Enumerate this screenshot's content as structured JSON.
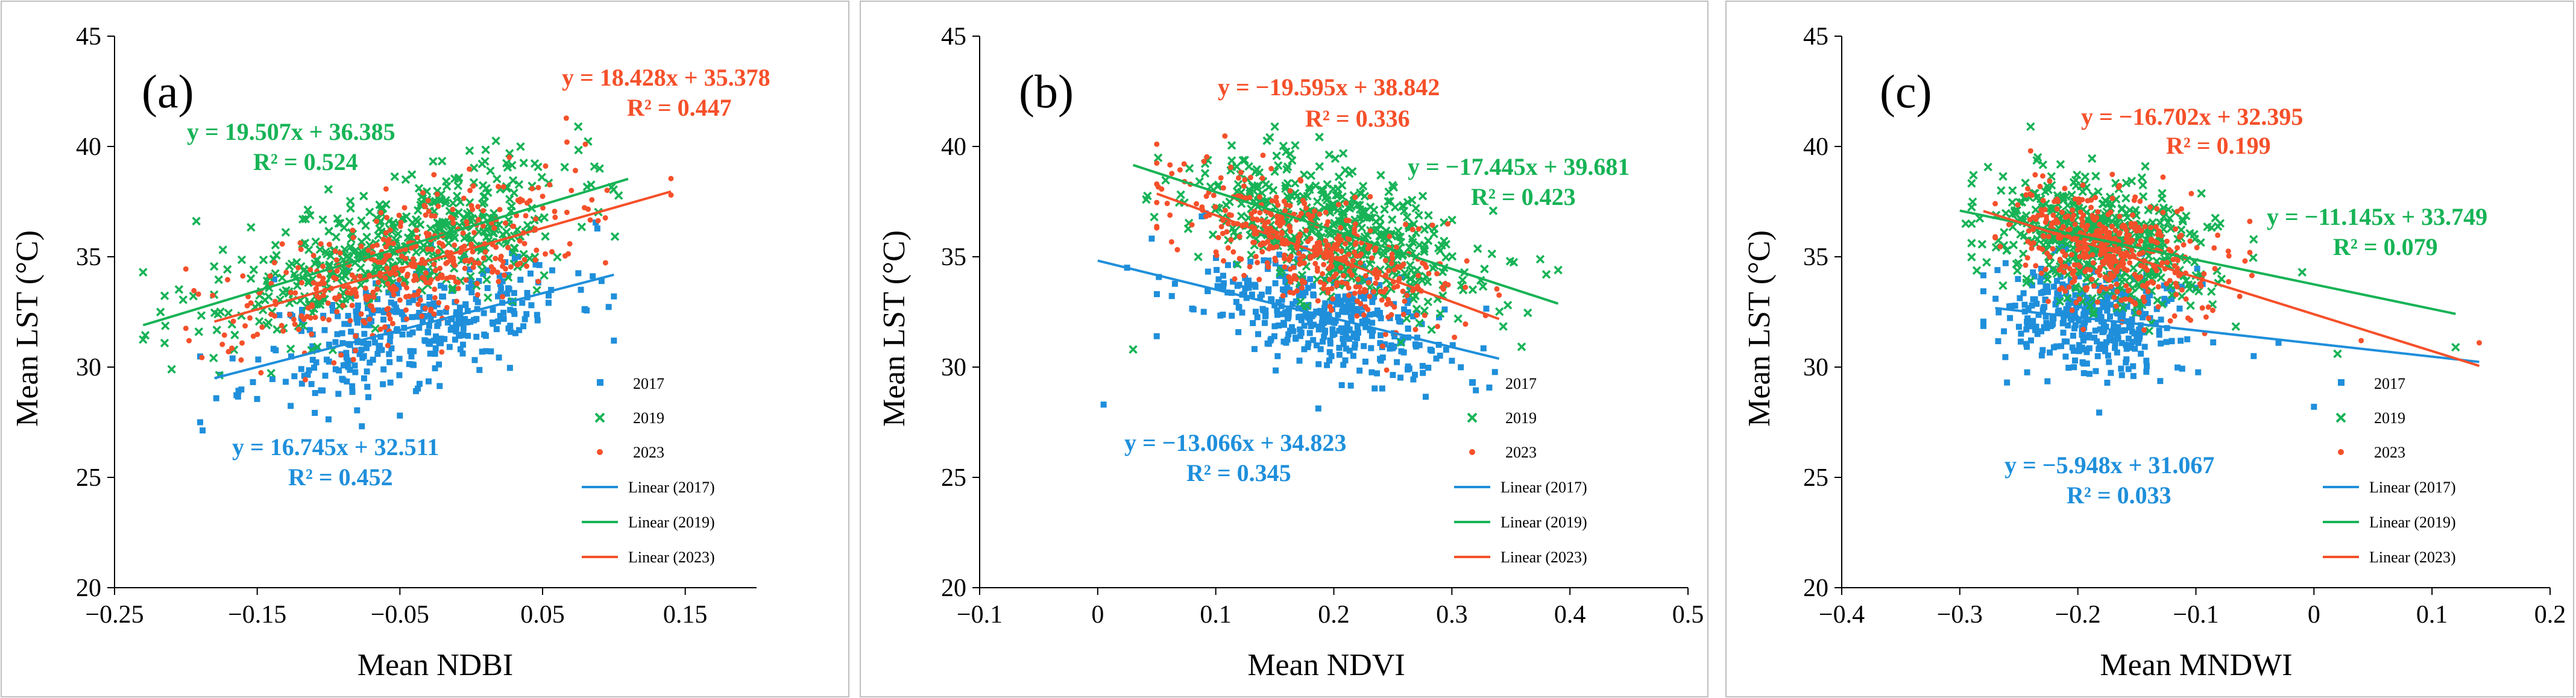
{
  "colors": {
    "s2017": "#1f8fdb",
    "s2019": "#17b356",
    "s2023": "#f5502a",
    "axis": "#000000",
    "frame": "#bfbfbf"
  },
  "chart_data": [
    {
      "type": "scatter",
      "panel_label": "(a)",
      "xlabel": "Mean NDBI",
      "ylabel": "Mean LST (°C)",
      "xlim": [
        -0.25,
        0.2
      ],
      "ylim": [
        20,
        45
      ],
      "xticks": [
        -0.25,
        -0.15,
        -0.05,
        0.05,
        0.15
      ],
      "xtick_labels": [
        "−0.25",
        "−0.15",
        "−0.05",
        "0.05",
        "0.15"
      ],
      "yticks": [
        20,
        25,
        30,
        35,
        40,
        45
      ],
      "ytick_labels": [
        "20",
        "25",
        "30",
        "35",
        "40",
        "45"
      ],
      "legend": {
        "entries": [
          "2017",
          "2019",
          "2023",
          "Linear (2017)",
          "Linear (2019)",
          "Linear (2023)"
        ],
        "position": "bottom-right"
      },
      "series": [
        {
          "name": "2017",
          "marker": "square",
          "x_mean": -0.04,
          "x_sd": 0.055,
          "x_range": [
            -0.19,
            0.1
          ],
          "slope": 16.745,
          "intercept": 32.511,
          "noise": 1.3,
          "n": 380,
          "seed": 11,
          "outliers": [
            [
              -0.19,
              27.5
            ],
            [
              -0.05,
              27.8
            ],
            [
              0.1,
              31.2
            ]
          ]
        },
        {
          "name": "2019",
          "marker": "x",
          "x_mean": -0.05,
          "x_sd": 0.06,
          "x_range": [
            -0.23,
            0.12
          ],
          "slope": 19.507,
          "intercept": 36.385,
          "noise": 1.4,
          "n": 520,
          "seed": 22,
          "outliers": [
            [
              -0.23,
              34.3
            ],
            [
              -0.21,
              29.9
            ],
            [
              0.075,
              40.9
            ],
            [
              0.09,
              39.0
            ]
          ]
        },
        {
          "name": "2023",
          "marker": "dot",
          "x_mean": -0.045,
          "x_sd": 0.06,
          "x_range": [
            -0.2,
            0.14
          ],
          "slope": 18.428,
          "intercept": 35.378,
          "noise": 1.4,
          "n": 420,
          "seed": 33,
          "outliers": [
            [
              0.08,
              40.1
            ],
            [
              0.14,
              37.8
            ]
          ]
        }
      ],
      "fits": [
        {
          "name": "Linear (2017)",
          "x_range": [
            -0.18,
            0.1
          ]
        },
        {
          "name": "Linear (2019)",
          "x_range": [
            -0.23,
            0.11
          ]
        },
        {
          "name": "Linear (2023)",
          "x_range": [
            -0.18,
            0.14
          ]
        }
      ],
      "annotations": [
        {
          "series": "2023",
          "equation": "y = 18.428x + 35.378",
          "r2": "R² = 0.447"
        },
        {
          "series": "2019",
          "equation": "y = 19.507x + 36.385",
          "r2": "R² = 0.524"
        },
        {
          "series": "2017",
          "equation": "y = 16.745x + 32.511",
          "r2": "R² = 0.452"
        }
      ]
    },
    {
      "type": "scatter",
      "panel_label": "(b)",
      "xlabel": "Mean NDVI",
      "ylabel": "Mean LST (°C)",
      "xlim": [
        -0.1,
        0.5
      ],
      "ylim": [
        20,
        45
      ],
      "xticks": [
        -0.1,
        0,
        0.1,
        0.2,
        0.3,
        0.4,
        0.5
      ],
      "xtick_labels": [
        "−0.1",
        "0",
        "0.1",
        "0.2",
        "0.3",
        "0.4",
        "0.5"
      ],
      "yticks": [
        20,
        25,
        30,
        35,
        40,
        45
      ],
      "ytick_labels": [
        "20",
        "25",
        "30",
        "35",
        "40",
        "45"
      ],
      "legend": {
        "entries": [
          "2017",
          "2019",
          "2023",
          "Linear (2017)",
          "Linear (2019)",
          "Linear (2023)"
        ],
        "position": "bottom-right"
      },
      "series": [
        {
          "name": "2017",
          "marker": "square",
          "x_mean": 0.19,
          "x_sd": 0.055,
          "x_range": [
            0.0,
            0.34
          ],
          "slope": -13.066,
          "intercept": 34.823,
          "noise": 1.3,
          "n": 380,
          "seed": 44,
          "outliers": [
            [
              0.005,
              28.3
            ],
            [
              0.05,
              31.4
            ]
          ]
        },
        {
          "name": "2019",
          "marker": "x",
          "x_mean": 0.2,
          "x_sd": 0.06,
          "x_range": [
            0.03,
            0.39
          ],
          "slope": -17.445,
          "intercept": 39.681,
          "noise": 1.4,
          "n": 520,
          "seed": 55,
          "outliers": [
            [
              0.03,
              30.8
            ],
            [
              0.15,
              40.9
            ],
            [
              0.38,
              34.2
            ],
            [
              0.39,
              34.4
            ]
          ]
        },
        {
          "name": "2023",
          "marker": "dot",
          "x_mean": 0.18,
          "x_sd": 0.055,
          "x_range": [
            0.05,
            0.34
          ],
          "slope": -19.595,
          "intercept": 38.842,
          "noise": 1.3,
          "n": 420,
          "seed": 66,
          "outliers": [
            [
              0.14,
              39.6
            ]
          ]
        }
      ],
      "fits": [
        {
          "name": "Linear (2017)",
          "x_range": [
            0.0,
            0.34
          ]
        },
        {
          "name": "Linear (2019)",
          "x_range": [
            0.03,
            0.39
          ]
        },
        {
          "name": "Linear (2023)",
          "x_range": [
            0.05,
            0.34
          ]
        }
      ],
      "annotations": [
        {
          "series": "2023",
          "equation": "y = −19.595x + 38.842",
          "r2": "R² = 0.336"
        },
        {
          "series": "2019",
          "equation": "y = −17.445x + 39.681",
          "r2": "R² = 0.423"
        },
        {
          "series": "2017",
          "equation": "y = −13.066x + 34.823",
          "r2": "R² = 0.345"
        }
      ]
    },
    {
      "type": "scatter",
      "panel_label": "(c)",
      "xlabel": "Mean MNDWI",
      "ylabel": "Mean LST (°C)",
      "xlim": [
        -0.4,
        0.2
      ],
      "ylim": [
        20,
        45
      ],
      "xticks": [
        -0.4,
        -0.3,
        -0.2,
        -0.1,
        0,
        0.1,
        0.2
      ],
      "xtick_labels": [
        "−0.4",
        "−0.3",
        "−0.2",
        "−0.1",
        "0",
        "0.1",
        "0.2"
      ],
      "yticks": [
        20,
        25,
        30,
        35,
        40,
        45
      ],
      "ytick_labels": [
        "20",
        "25",
        "30",
        "35",
        "40",
        "45"
      ],
      "legend": {
        "entries": [
          "2017",
          "2019",
          "2023",
          "Linear (2017)",
          "Linear (2019)",
          "Linear (2023)"
        ],
        "position": "bottom-right"
      },
      "series": [
        {
          "name": "2017",
          "marker": "square",
          "x_mean": -0.19,
          "x_sd": 0.04,
          "x_range": [
            -0.28,
            0.0
          ],
          "slope": -5.948,
          "intercept": 31.067,
          "noise": 1.3,
          "n": 380,
          "seed": 77,
          "outliers": [
            [
              -0.26,
              29.3
            ],
            [
              0.0,
              28.2
            ],
            [
              -0.03,
              31.1
            ]
          ]
        },
        {
          "name": "2019",
          "marker": "x",
          "x_mean": -0.18,
          "x_sd": 0.045,
          "x_range": [
            -0.29,
            -0.05
          ],
          "slope": -11.145,
          "intercept": 33.749,
          "noise": 1.4,
          "n": 520,
          "seed": 88,
          "outliers": [
            [
              -0.295,
              36.5
            ],
            [
              -0.24,
              40.9
            ],
            [
              0.02,
              30.6
            ],
            [
              0.12,
              30.9
            ],
            [
              -0.01,
              34.3
            ]
          ]
        },
        {
          "name": "2023",
          "marker": "dot",
          "x_mean": -0.17,
          "x_sd": 0.04,
          "x_range": [
            -0.27,
            -0.05
          ],
          "slope": -16.702,
          "intercept": 32.395,
          "noise": 1.3,
          "n": 420,
          "seed": 99,
          "outliers": [
            [
              -0.24,
              39.8
            ],
            [
              0.14,
              31.1
            ],
            [
              0.04,
              31.2
            ]
          ]
        }
      ],
      "fits": [
        {
          "name": "Linear (2017)",
          "x_range": [
            -0.27,
            0.14
          ]
        },
        {
          "name": "Linear (2019)",
          "x_range": [
            -0.3,
            0.12
          ]
        },
        {
          "name": "Linear (2023)",
          "x_range": [
            -0.28,
            0.14
          ]
        }
      ],
      "annotations": [
        {
          "series": "2023",
          "equation": "y = −16.702x + 32.395",
          "r2": "R² = 0.199"
        },
        {
          "series": "2019",
          "equation": "y = −11.145x + 33.749",
          "r2": "R² = 0.079"
        },
        {
          "series": "2017",
          "equation": "y = −5.948x + 31.067",
          "r2": "R² = 0.033"
        }
      ]
    }
  ]
}
